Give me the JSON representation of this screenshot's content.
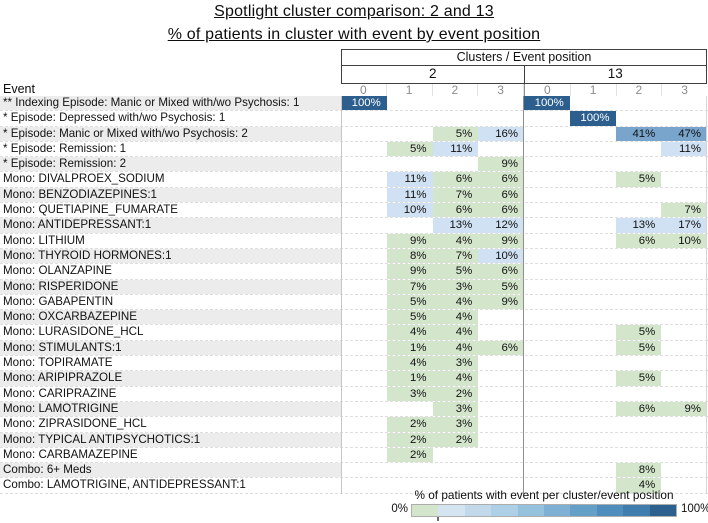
{
  "title": "Spotlight cluster comparison: 2 and 13",
  "subtitle": "% of patients in cluster with event by event position",
  "table": {
    "group_header": "Clusters / Event position",
    "corner_label": "Event"
  },
  "legend": {
    "label": "% of patients with event per cluster/event position",
    "min_label": "0%",
    "max_label": "100%"
  },
  "palette": {
    "green": "#d3e6cb",
    "light": "#cfe1f2",
    "mid": "#79a5cc",
    "dark": "#2c5f8e",
    "dark_text": "#ffffff"
  },
  "legend_colors": [
    "#d3e6cb",
    "#d4e4f1",
    "#c2d9ec",
    "#add0e6",
    "#96c1dd",
    "#7db0d3",
    "#649fc8",
    "#4f8ebc",
    "#3f7dae",
    "#2c618f"
  ],
  "chart_data": {
    "type": "heatmap",
    "title": "Spotlight cluster comparison: 2 and 13",
    "subtitle": "% of patients in cluster with event by event position",
    "unit": "%",
    "value_range": [
      0,
      100
    ],
    "column_groups": [
      {
        "cluster": "2",
        "positions": [
          "0",
          "1",
          "2",
          "3"
        ]
      },
      {
        "cluster": "13",
        "positions": [
          "0",
          "1",
          "2",
          "3"
        ]
      }
    ],
    "legend": {
      "label": "% of patients with event per cluster/event position",
      "min": 0,
      "max": 100
    },
    "rows": [
      {
        "label": "** Indexing Episode: Manic or Mixed with/wo Psychosis: 1",
        "values": [
          100,
          null,
          null,
          null,
          100,
          null,
          null,
          null
        ],
        "colors": [
          "dark",
          null,
          null,
          null,
          "dark",
          null,
          null,
          null
        ]
      },
      {
        "label": "* Episode: Depressed with/wo Psychosis: 1",
        "values": [
          null,
          null,
          null,
          null,
          null,
          100,
          null,
          null
        ],
        "colors": [
          null,
          null,
          null,
          null,
          null,
          "dark",
          null,
          null
        ]
      },
      {
        "label": "* Episode: Manic or Mixed with/wo Psychosis: 2",
        "values": [
          null,
          null,
          5,
          16,
          null,
          null,
          41,
          47
        ],
        "colors": [
          null,
          null,
          "green",
          "light",
          null,
          null,
          "mid",
          "mid"
        ]
      },
      {
        "label": "* Episode: Remission: 1",
        "values": [
          null,
          5,
          11,
          null,
          null,
          null,
          null,
          11
        ],
        "colors": [
          null,
          "green",
          "light",
          null,
          null,
          null,
          null,
          "light"
        ]
      },
      {
        "label": "* Episode: Remission: 2",
        "values": [
          null,
          null,
          null,
          9,
          null,
          null,
          null,
          null
        ],
        "colors": [
          null,
          null,
          null,
          "green",
          null,
          null,
          null,
          null
        ]
      },
      {
        "label": "Mono: DIVALPROEX_SODIUM",
        "values": [
          null,
          11,
          6,
          6,
          null,
          null,
          5,
          null
        ],
        "colors": [
          null,
          "light",
          "green",
          "green",
          null,
          null,
          "green",
          null
        ]
      },
      {
        "label": "Mono: BENZODIAZEPINES:1",
        "values": [
          null,
          11,
          7,
          6,
          null,
          null,
          null,
          null
        ],
        "colors": [
          null,
          "light",
          "green",
          "green",
          null,
          null,
          null,
          null
        ]
      },
      {
        "label": "Mono: QUETIAPINE_FUMARATE",
        "values": [
          null,
          10,
          6,
          6,
          null,
          null,
          null,
          7
        ],
        "colors": [
          null,
          "light",
          "green",
          "green",
          null,
          null,
          null,
          "green"
        ]
      },
      {
        "label": "Mono: ANTIDEPRESSANT:1",
        "values": [
          null,
          null,
          13,
          12,
          null,
          null,
          13,
          17
        ],
        "colors": [
          null,
          null,
          "light",
          "light",
          null,
          null,
          "light",
          "light"
        ]
      },
      {
        "label": "Mono: LITHIUM",
        "values": [
          null,
          9,
          4,
          9,
          null,
          null,
          6,
          10
        ],
        "colors": [
          null,
          "green",
          "green",
          "green",
          null,
          null,
          "green",
          "green"
        ]
      },
      {
        "label": "Mono: THYROID HORMONES:1",
        "values": [
          null,
          8,
          7,
          10,
          null,
          null,
          null,
          null
        ],
        "colors": [
          null,
          "green",
          "green",
          "light",
          null,
          null,
          null,
          null
        ]
      },
      {
        "label": "Mono: OLANZAPINE",
        "values": [
          null,
          9,
          5,
          6,
          null,
          null,
          null,
          null
        ],
        "colors": [
          null,
          "green",
          "green",
          "green",
          null,
          null,
          null,
          null
        ]
      },
      {
        "label": "Mono: RISPERIDONE",
        "values": [
          null,
          7,
          3,
          5,
          null,
          null,
          null,
          null
        ],
        "colors": [
          null,
          "green",
          "green",
          "green",
          null,
          null,
          null,
          null
        ]
      },
      {
        "label": "Mono: GABAPENTIN",
        "values": [
          null,
          5,
          4,
          9,
          null,
          null,
          null,
          null
        ],
        "colors": [
          null,
          "green",
          "green",
          "green",
          null,
          null,
          null,
          null
        ]
      },
      {
        "label": "Mono: OXCARBAZEPINE",
        "values": [
          null,
          5,
          4,
          null,
          null,
          null,
          null,
          null
        ],
        "colors": [
          null,
          "green",
          "green",
          null,
          null,
          null,
          null,
          null
        ]
      },
      {
        "label": "Mono: LURASIDONE_HCL",
        "values": [
          null,
          4,
          4,
          null,
          null,
          null,
          5,
          null
        ],
        "colors": [
          null,
          "green",
          "green",
          null,
          null,
          null,
          "green",
          null
        ]
      },
      {
        "label": "Mono: STIMULANTS:1",
        "values": [
          null,
          1,
          4,
          6,
          null,
          null,
          5,
          null
        ],
        "colors": [
          null,
          "green",
          "green",
          "green",
          null,
          null,
          "green",
          null
        ]
      },
      {
        "label": "Mono: TOPIRAMATE",
        "values": [
          null,
          4,
          3,
          null,
          null,
          null,
          null,
          null
        ],
        "colors": [
          null,
          "green",
          "green",
          null,
          null,
          null,
          null,
          null
        ]
      },
      {
        "label": "Mono: ARIPIPRAZOLE",
        "values": [
          null,
          1,
          4,
          null,
          null,
          null,
          5,
          null
        ],
        "colors": [
          null,
          "green",
          "green",
          null,
          null,
          null,
          "green",
          null
        ]
      },
      {
        "label": "Mono: CARIPRAZINE",
        "values": [
          null,
          3,
          2,
          null,
          null,
          null,
          null,
          null
        ],
        "colors": [
          null,
          "green",
          "green",
          null,
          null,
          null,
          null,
          null
        ]
      },
      {
        "label": "Mono: LAMOTRIGINE",
        "values": [
          null,
          null,
          3,
          null,
          null,
          null,
          6,
          9
        ],
        "colors": [
          null,
          null,
          "green",
          null,
          null,
          null,
          "green",
          "green"
        ]
      },
      {
        "label": "Mono: ZIPRASIDONE_HCL",
        "values": [
          null,
          2,
          3,
          null,
          null,
          null,
          null,
          null
        ],
        "colors": [
          null,
          "green",
          "green",
          null,
          null,
          null,
          null,
          null
        ]
      },
      {
        "label": "Mono: TYPICAL ANTIPSYCHOTICS:1",
        "values": [
          null,
          2,
          2,
          null,
          null,
          null,
          null,
          null
        ],
        "colors": [
          null,
          "green",
          "green",
          null,
          null,
          null,
          null,
          null
        ]
      },
      {
        "label": "Mono: CARBAMAZEPINE",
        "values": [
          null,
          2,
          null,
          null,
          null,
          null,
          null,
          null
        ],
        "colors": [
          null,
          "green",
          null,
          null,
          null,
          null,
          null,
          null
        ]
      },
      {
        "label": "Combo: 6+ Meds",
        "values": [
          null,
          null,
          null,
          null,
          null,
          null,
          8,
          null
        ],
        "colors": [
          null,
          null,
          null,
          null,
          null,
          null,
          "green",
          null
        ]
      },
      {
        "label": "Combo: LAMOTRIGINE, ANTIDEPRESSANT:1",
        "values": [
          null,
          null,
          null,
          null,
          null,
          null,
          4,
          null
        ],
        "colors": [
          null,
          null,
          null,
          null,
          null,
          null,
          "green",
          null
        ]
      }
    ]
  }
}
